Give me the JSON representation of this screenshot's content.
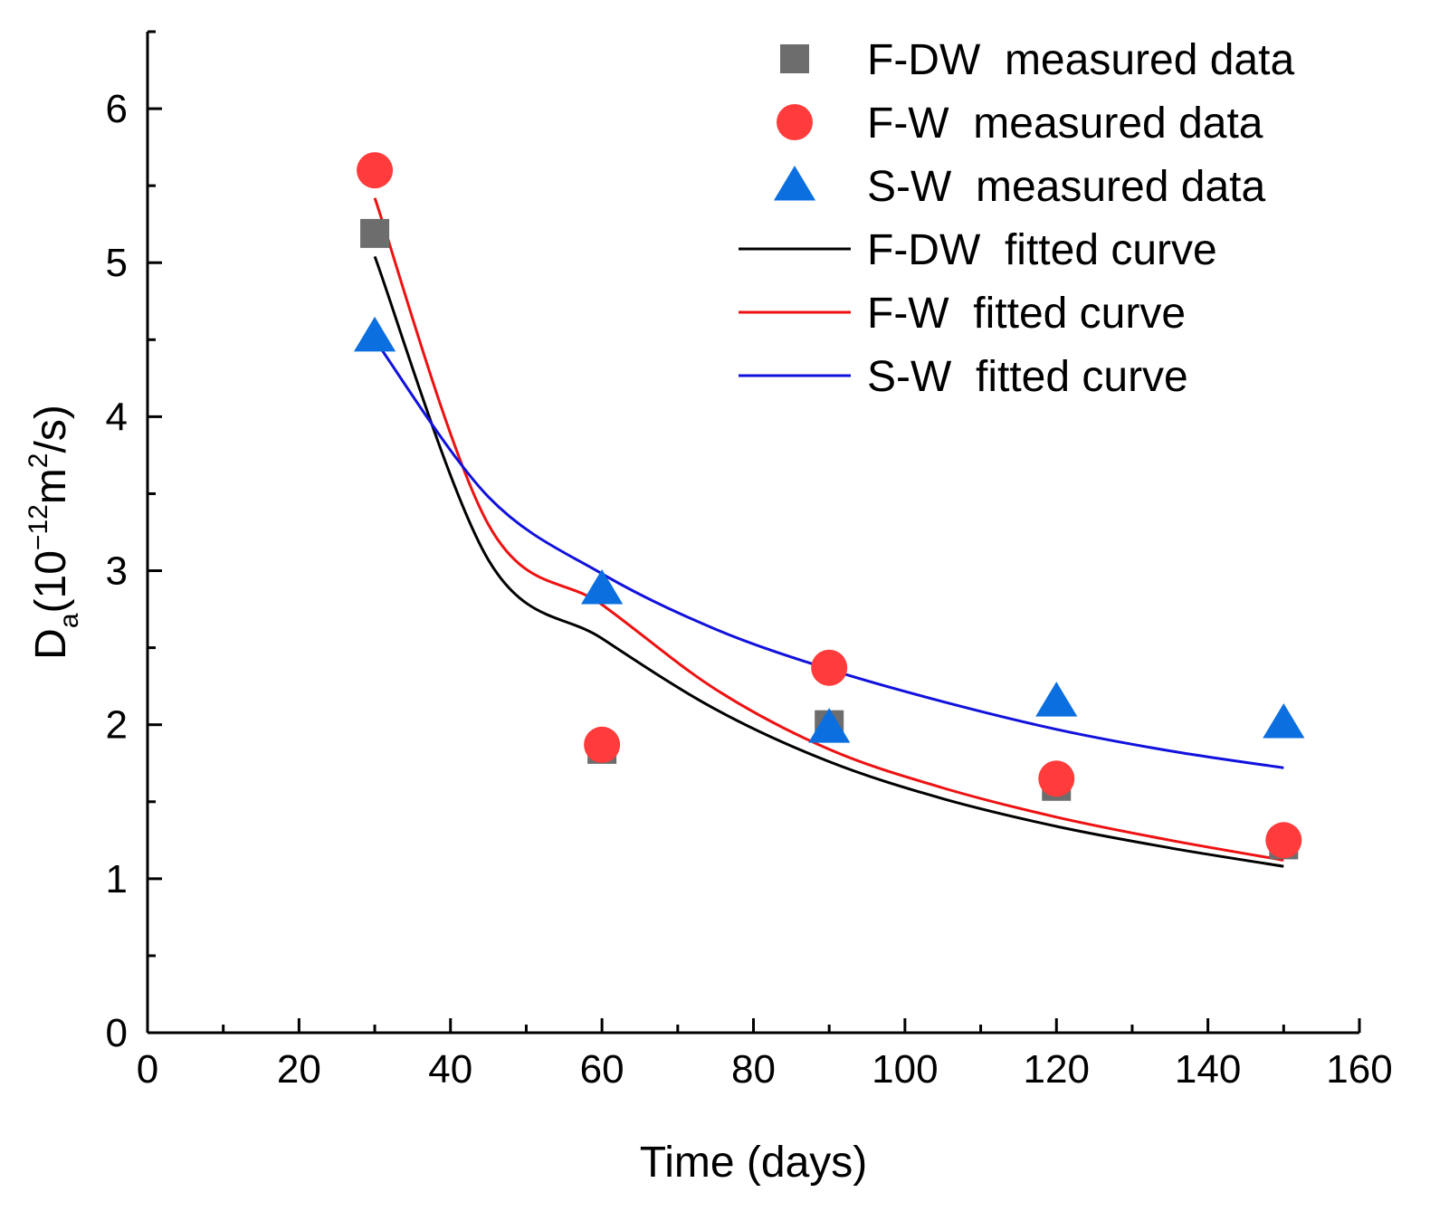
{
  "chart_data": {
    "type": "scatter",
    "title": "",
    "xlabel": "Time (days)",
    "ylabel": {
      "main": "D",
      "sub": "a",
      "open": "(10",
      "exp": "−12",
      "unit_base": "m",
      "unit_exp": "2",
      "close": "/s)"
    },
    "xlim": [
      0,
      160
    ],
    "ylim": [
      0,
      6.5
    ],
    "xticks": [
      0,
      20,
      40,
      60,
      80,
      100,
      120,
      140,
      160
    ],
    "yticks": [
      0,
      1,
      2,
      3,
      4,
      5,
      6
    ],
    "x_minor_step": 10,
    "y_minor_step": 0.5,
    "grid": false,
    "legend_position": "top-right",
    "series": [
      {
        "name": "F-DW  measured data",
        "kind": "markers",
        "marker": "square",
        "color": "#6d6d6d",
        "x": [
          30,
          60,
          90,
          120,
          150
        ],
        "y": [
          5.19,
          1.84,
          2.0,
          1.6,
          1.22
        ]
      },
      {
        "name": "F-W  measured data",
        "kind": "markers",
        "marker": "circle",
        "color": "#ff3b3b",
        "x": [
          30,
          60,
          90,
          120,
          150
        ],
        "y": [
          5.6,
          1.87,
          2.37,
          1.65,
          1.25
        ]
      },
      {
        "name": "S-W  measured data",
        "kind": "markers",
        "marker": "triangle",
        "color": "#0b6fe0",
        "x": [
          30,
          60,
          90,
          120,
          150
        ],
        "y": [
          4.52,
          2.88,
          1.98,
          2.15,
          2.01
        ]
      },
      {
        "name": "F-DW  fitted curve",
        "kind": "line",
        "color": "#000000",
        "x": [
          30,
          45,
          60,
          75,
          90,
          105,
          120,
          135,
          150
        ],
        "y": [
          5.04,
          3.07,
          2.56,
          2.1,
          1.76,
          1.52,
          1.34,
          1.2,
          1.08
        ]
      },
      {
        "name": "F-W  fitted curve",
        "kind": "line",
        "color": "#ee1111",
        "x": [
          30,
          45,
          60,
          75,
          90,
          105,
          120,
          135,
          150
        ],
        "y": [
          5.42,
          3.3,
          2.78,
          2.23,
          1.84,
          1.59,
          1.4,
          1.25,
          1.12
        ]
      },
      {
        "name": "S-W  fitted curve",
        "kind": "line",
        "color": "#1111dd",
        "x": [
          30,
          45,
          60,
          75,
          90,
          105,
          120,
          135,
          150
        ],
        "y": [
          4.5,
          3.48,
          2.98,
          2.62,
          2.36,
          2.15,
          1.97,
          1.83,
          1.72
        ]
      }
    ]
  }
}
